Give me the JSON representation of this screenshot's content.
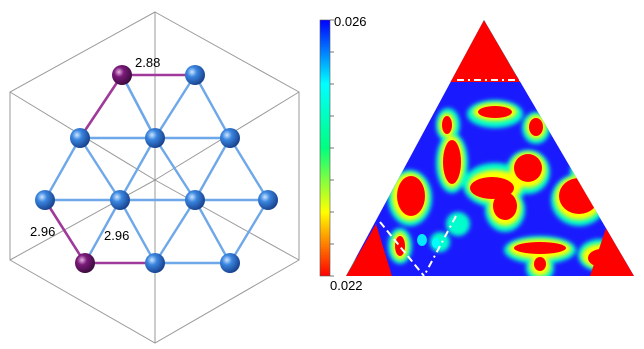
{
  "structure": {
    "bond_lengths": [
      "2.88",
      "2.96",
      "2.96"
    ],
    "colors": {
      "host_atom": "#3a86e0",
      "dopant_atom": "#7a1a7a",
      "host_bond": "#6fa8e8",
      "dopant_bond": "#a03a9a",
      "cell_edge": "#9a9a9a"
    }
  },
  "colorbar": {
    "max_label": "0.026",
    "min_label": "0.022",
    "colormap": [
      "#ff0000",
      "#ffff00",
      "#00ff7f",
      "#00ffff",
      "#0000ff"
    ]
  },
  "map": {
    "colors": {
      "low": "#ff0000",
      "mid": "#ffff00",
      "rim": "#00ffcc",
      "high": "#1a1aff"
    }
  }
}
